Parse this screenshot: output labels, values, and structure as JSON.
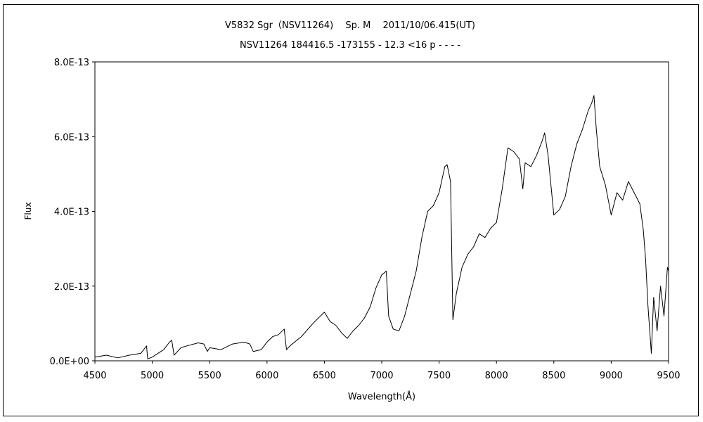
{
  "chart_data": {
    "type": "line",
    "title": "V5832 Sgr（NSV11264)　 Sp. M　 2011/10/06.415(UT)",
    "subtitle": "NSV11264 184416.5 -173155 - 12.3 <16 p - - - -",
    "xlabel": "Wavelength(Å)",
    "ylabel": "Flux",
    "xlim": [
      4500,
      9500
    ],
    "ylim": [
      0,
      8e-13
    ],
    "x_ticks": [
      "4500",
      "5000",
      "5500",
      "6000",
      "6500",
      "7000",
      "7500",
      "8000",
      "8500",
      "9000",
      "9500"
    ],
    "y_ticks": [
      "0.0E+00",
      "2.0E-13",
      "4.0E-13",
      "6.0E-13",
      "8.0E-13"
    ],
    "grid": false,
    "legend": "none",
    "line_color": "#000000",
    "series": [
      {
        "x": [
          4500,
          4600,
          4700,
          4800,
          4900,
          4950,
          4960,
          5000,
          5100,
          5150,
          5170,
          5190,
          5250,
          5300,
          5400,
          5450,
          5480,
          5500,
          5600,
          5700,
          5800,
          5850,
          5880,
          5950,
          6000,
          6050,
          6100,
          6150,
          6170,
          6200,
          6300,
          6400,
          6450,
          6500,
          6550,
          6600,
          6650,
          6700,
          6750,
          6800,
          6850,
          6900,
          6950,
          7000,
          7040,
          7060,
          7100,
          7150,
          7200,
          7250,
          7300,
          7350,
          7400,
          7450,
          7500,
          7550,
          7570,
          7600,
          7620,
          7650,
          7700,
          7750,
          7800,
          7850,
          7900,
          7950,
          8000,
          8050,
          8100,
          8150,
          8200,
          8230,
          8250,
          8300,
          8350,
          8400,
          8420,
          8450,
          8500,
          8550,
          8600,
          8650,
          8700,
          8750,
          8800,
          8830,
          8850,
          8870,
          8900,
          8950,
          9000,
          9050,
          9100,
          9150,
          9200,
          9250,
          9280,
          9300,
          9320,
          9350,
          9370,
          9400,
          9430,
          9460,
          9490,
          9500
        ],
        "y": [
          1e-14,
          1.5e-14,
          8e-15,
          1.5e-14,
          2e-14,
          4e-14,
          5e-15,
          1e-14,
          3e-14,
          5e-14,
          5.5e-14,
          1.5e-14,
          3.5e-14,
          4e-14,
          4.8e-14,
          4.5e-14,
          2.5e-14,
          3.5e-14,
          3e-14,
          4.5e-14,
          5e-14,
          4.5e-14,
          2.5e-14,
          3e-14,
          5e-14,
          6.5e-14,
          7e-14,
          8.5e-14,
          3e-14,
          4e-14,
          6.5e-14,
          1e-13,
          1.15e-13,
          1.3e-13,
          1.05e-13,
          9.5e-14,
          7.5e-14,
          6e-14,
          8e-14,
          9.5e-14,
          1.15e-13,
          1.45e-13,
          1.95e-13,
          2.3e-13,
          2.4e-13,
          1.2e-13,
          8.5e-14,
          8e-14,
          1.2e-13,
          1.8e-13,
          2.4e-13,
          3.3e-13,
          4e-13,
          4.15e-13,
          4.5e-13,
          5.2e-13,
          5.25e-13,
          4.8e-13,
          1.1e-13,
          1.8e-13,
          2.5e-13,
          2.85e-13,
          3.05e-13,
          3.4e-13,
          3.3e-13,
          3.55e-13,
          3.7e-13,
          4.6e-13,
          5.7e-13,
          5.6e-13,
          5.4e-13,
          4.6e-13,
          5.3e-13,
          5.2e-13,
          5.5e-13,
          5.9e-13,
          6.1e-13,
          5.5e-13,
          3.9e-13,
          4.05e-13,
          4.4e-13,
          5.2e-13,
          5.8e-13,
          6.2e-13,
          6.7e-13,
          6.9e-13,
          7.1e-13,
          6.2e-13,
          5.2e-13,
          4.7e-13,
          3.9e-13,
          4.5e-13,
          4.3e-13,
          4.8e-13,
          4.5e-13,
          4.2e-13,
          3.5e-13,
          2.7e-13,
          1.5e-13,
          2e-14,
          1.7e-13,
          8e-14,
          2e-13,
          1.2e-13,
          2.5e-13,
          2.4e-13
        ]
      }
    ]
  }
}
